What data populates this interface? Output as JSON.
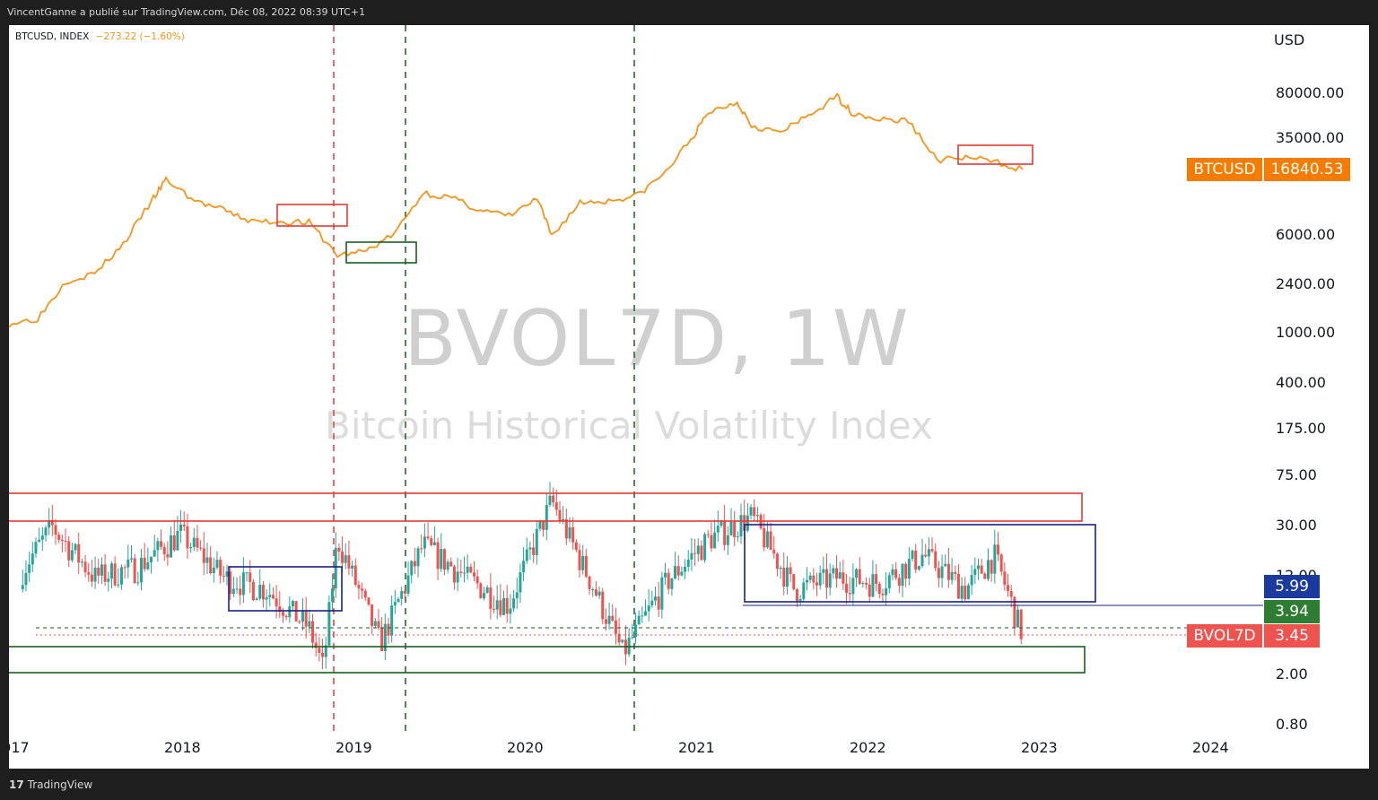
{
  "header": {
    "publisher_line": "VincentGanne a publié sur TradingView.com, Déc 08, 2022 08:39 UTC+1"
  },
  "legend": {
    "symbol": "BTCUSD, INDEX",
    "change": "−273.22 (−1.60%)"
  },
  "watermark": {
    "title": "BVOL7D, 1W",
    "subtitle": "Bitcoin Historical Volatility Index"
  },
  "axis": {
    "currency": "USD",
    "price_ticks": [
      "80000.00",
      "35000.00",
      "6000.00",
      "2400.00",
      "1000.00",
      "400.00",
      "175.00",
      "75.00",
      "30.00",
      "12.00",
      "2.00",
      "0.80"
    ],
    "year_ticks": [
      "2017",
      "2018",
      "2019",
      "2020",
      "2021",
      "2022",
      "2023",
      "2024"
    ]
  },
  "tags": {
    "btc_label": "BTCUSD",
    "btc_value": "16840.53",
    "bvol_label": "BVOL7D",
    "bvol_value": "3.45",
    "level_blue": "5.99",
    "level_green": "3.94"
  },
  "footer": {
    "brand": "TradingView"
  },
  "colors": {
    "btc_line": "#f7931a",
    "candle_up": "#26a69a",
    "candle_down": "#ef5350",
    "box_red": "#e53935",
    "box_green": "#1b5e20",
    "box_blue": "#1a237e",
    "tag_blue": "#1a3a9e",
    "tag_green": "#2e7d32",
    "tag_red": "#ef5350",
    "tag_orange": "#f57c00"
  },
  "chart_data": [
    {
      "type": "line",
      "series": [
        {
          "name": "BTCUSD",
          "x": [
            "2017-01",
            "2017-03",
            "2017-05",
            "2017-07",
            "2017-09",
            "2017-11",
            "2017-12",
            "2018-02",
            "2018-04",
            "2018-06",
            "2018-08",
            "2018-10",
            "2018-12",
            "2019-02",
            "2019-04",
            "2019-06",
            "2019-08",
            "2019-10",
            "2019-12",
            "2020-02",
            "2020-03",
            "2020-05",
            "2020-07",
            "2020-09",
            "2020-11",
            "2021-01",
            "2021-02",
            "2021-04",
            "2021-05",
            "2021-07",
            "2021-09",
            "2021-11",
            "2021-12",
            "2022-02",
            "2022-04",
            "2022-06",
            "2022-08",
            "2022-10",
            "2022-12"
          ],
          "y": [
            1000,
            1100,
            2200,
            2500,
            4300,
            9500,
            14000,
            9500,
            8000,
            6500,
            6500,
            6400,
            3500,
            3800,
            5200,
            11000,
            10000,
            8000,
            7200,
            9800,
            5000,
            9200,
            9500,
            10500,
            16000,
            32000,
            48000,
            58000,
            38000,
            33000,
            45000,
            64000,
            48000,
            42000,
            41000,
            20000,
            21000,
            19500,
            16840.53
          ]
        }
      ],
      "yscale": "log"
    },
    {
      "type": "bar",
      "series": [
        {
          "name": "BVOL7D",
          "x": [
            "2017-01",
            "2017-04",
            "2017-07",
            "2017-10",
            "2018-01",
            "2018-04",
            "2018-07",
            "2018-10",
            "2018-11",
            "2018-12",
            "2019-03",
            "2019-06",
            "2019-09",
            "2019-12",
            "2020-03",
            "2020-06",
            "2020-08",
            "2020-11",
            "2021-02",
            "2021-05",
            "2021-08",
            "2021-11",
            "2022-02",
            "2022-05",
            "2022-08",
            "2022-10",
            "2022-12"
          ],
          "y": [
            8,
            25,
            10,
            12,
            22,
            10,
            8,
            4,
            1.9,
            20,
            3,
            18,
            10,
            6,
            40,
            8,
            2.5,
            9,
            20,
            30,
            8,
            10,
            9,
            15,
            8,
            15,
            3.45
          ]
        }
      ],
      "yscale": "log"
    }
  ]
}
